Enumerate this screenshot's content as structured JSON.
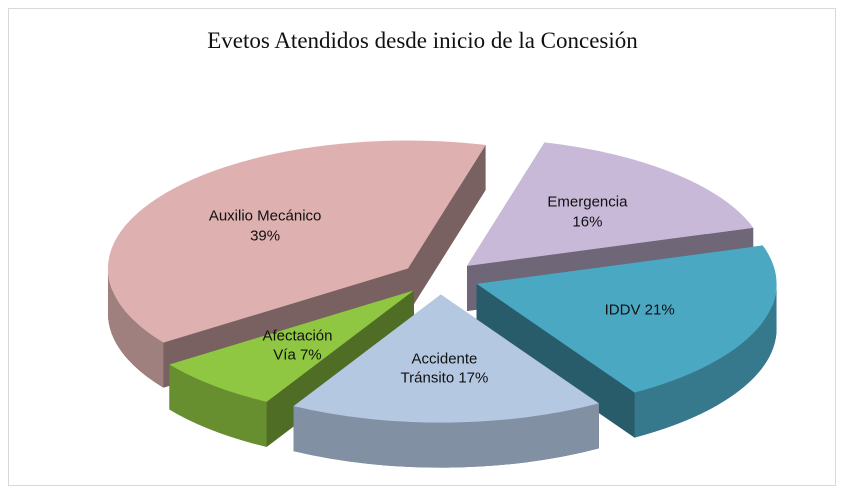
{
  "chart_data": {
    "type": "pie",
    "title": "Evetos Atendidos desde inicio de la Concesión",
    "categories": [
      "Emergencia",
      "IDDV",
      "Accidente Tránsito",
      "Afectación Vía",
      "Auxilio Mecánico"
    ],
    "values": [
      16,
      21,
      17,
      7,
      39
    ],
    "value_labels": [
      "16%",
      "21%",
      "17%",
      "7%",
      "39%"
    ],
    "colors": [
      "#c9b9d8",
      "#4ba8c3",
      "#b5c8e2",
      "#8fc742",
      "#deb1b0"
    ]
  }
}
